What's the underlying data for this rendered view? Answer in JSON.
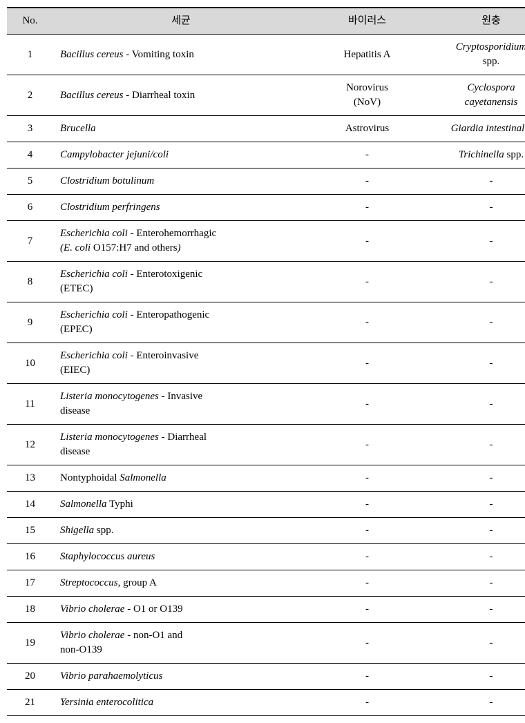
{
  "table": {
    "headers": {
      "no": "No.",
      "bacteria": "세균",
      "virus": "바이러스",
      "protozoa": "원충"
    },
    "rows": [
      {
        "no": "1",
        "bact_html": "<span class='italic'>Bacillus cereus</span> - Vomiting toxin",
        "virus_html": "Hepatitis A",
        "proto_html": "<span class='italic'>Cryptosporidium</span><br>spp."
      },
      {
        "no": "2",
        "bact_html": "<span class='italic'>Bacillus cereus</span> - Diarrheal toxin",
        "virus_html": "Norovirus<br>(NoV)",
        "proto_html": "<span class='italic'>Cyclospora<br>cayetanensis</span>"
      },
      {
        "no": "3",
        "bact_html": "<span class='italic'>Brucella</span>",
        "virus_html": "Astrovirus",
        "proto_html": "<span class='italic'>Giardia intestinalis</span>"
      },
      {
        "no": "4",
        "bact_html": "<span class='italic'>Campylobacter jejuni/coli</span>",
        "virus_html": "-",
        "proto_html": "<span class='italic'>Trichinella</span> spp."
      },
      {
        "no": "5",
        "bact_html": "<span class='italic'>Clostridium botulinum</span>",
        "virus_html": "-",
        "proto_html": "-"
      },
      {
        "no": "6",
        "bact_html": "<span class='italic'>Clostridium perfringens</span>",
        "virus_html": "-",
        "proto_html": "-"
      },
      {
        "no": "7",
        "bact_html": "<span class='italic'>Escherichia coli</span> - Enterohemorrhagic<br><span class='italic'>(E. coli</span> O157:H7 and others<span class='italic'>)</span>",
        "virus_html": "-",
        "proto_html": "-"
      },
      {
        "no": "8",
        "bact_html": "<span class='italic'>Escherichia coli</span> - Enterotoxigenic<br>(ETEC)",
        "virus_html": "-",
        "proto_html": "-"
      },
      {
        "no": "9",
        "bact_html": "<span class='italic'>Escherichia coli</span> - Enteropathogenic<br>(EPEC)",
        "virus_html": "-",
        "proto_html": "-"
      },
      {
        "no": "10",
        "bact_html": "<span class='italic'>Escherichia coli</span> - Enteroinvasive<br>(EIEC)",
        "virus_html": "-",
        "proto_html": "-"
      },
      {
        "no": "11",
        "bact_html": "<span class='italic'>Listeria monocytogenes</span> - Invasive<br>disease",
        "virus_html": "-",
        "proto_html": "-"
      },
      {
        "no": "12",
        "bact_html": "<span class='italic'>Listeria monocytogenes</span> - Diarrheal<br>disease",
        "virus_html": "-",
        "proto_html": "-"
      },
      {
        "no": "13",
        "bact_html": "Nontyphoidal <span class='italic'>Salmonella</span>",
        "virus_html": "-",
        "proto_html": "-"
      },
      {
        "no": "14",
        "bact_html": "<span class='italic'>Salmonella</span> Typhi",
        "virus_html": "-",
        "proto_html": "-"
      },
      {
        "no": "15",
        "bact_html": "<span class='italic'>Shigella</span> spp.",
        "virus_html": "-",
        "proto_html": "-"
      },
      {
        "no": "16",
        "bact_html": "<span class='italic'>Staphylococcus aureus</span>",
        "virus_html": "-",
        "proto_html": "-"
      },
      {
        "no": "17",
        "bact_html": "<span class='italic'>Streptococcus,</span> group A",
        "virus_html": "-",
        "proto_html": "-"
      },
      {
        "no": "18",
        "bact_html": "<span class='italic'>Vibrio cholerae</span> - O1 or O139",
        "virus_html": "-",
        "proto_html": "-"
      },
      {
        "no": "19",
        "bact_html": "<span class='italic'>Vibrio cholerae</span> - non-O1 and<br>non-O139",
        "virus_html": "-",
        "proto_html": "-"
      },
      {
        "no": "20",
        "bact_html": "<span class='italic'>Vibrio parahaemolyticus</span>",
        "virus_html": "-",
        "proto_html": "-"
      },
      {
        "no": "21",
        "bact_html": "<span class='italic'>Yersinia enterocolitica</span>",
        "virus_html": "-",
        "proto_html": "-"
      }
    ]
  }
}
